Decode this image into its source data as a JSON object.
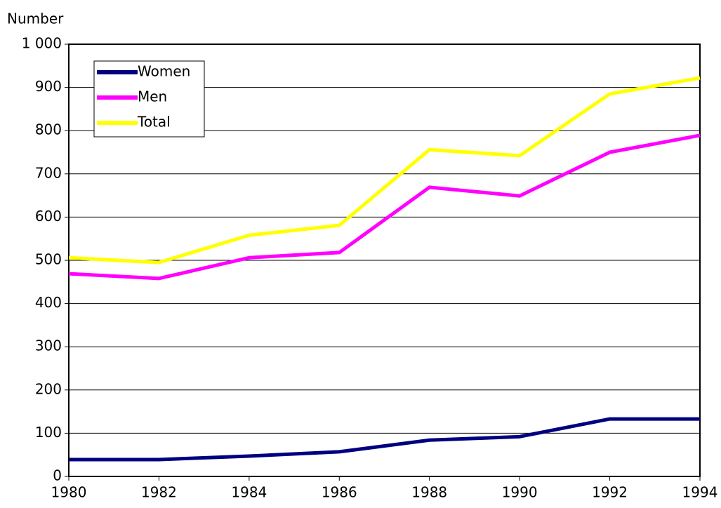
{
  "chart_data": {
    "type": "line",
    "ylabel": "Number",
    "x": [
      1980,
      1982,
      1984,
      1986,
      1988,
      1990,
      1992,
      1994
    ],
    "series": [
      {
        "name": "Women",
        "color": "#000080",
        "values": [
          39,
          39,
          47,
          57,
          84,
          92,
          133,
          133
        ]
      },
      {
        "name": "Men",
        "color": "#ff00ff",
        "values": [
          469,
          458,
          506,
          518,
          669,
          649,
          750,
          789
        ]
      },
      {
        "name": "Total",
        "color": "#ffff00",
        "values": [
          506,
          495,
          558,
          581,
          756,
          742,
          885,
          922
        ]
      }
    ],
    "xlim": [
      1980,
      1994
    ],
    "xticks": [
      1980,
      1982,
      1984,
      1986,
      1988,
      1990,
      1992,
      1994
    ],
    "ylim": [
      0,
      1000
    ],
    "yticks": [
      0,
      100,
      200,
      300,
      400,
      500,
      600,
      700,
      800,
      900,
      {
        "value": 1000,
        "label": "1 000"
      }
    ],
    "grid": true,
    "legend": "upper left"
  }
}
